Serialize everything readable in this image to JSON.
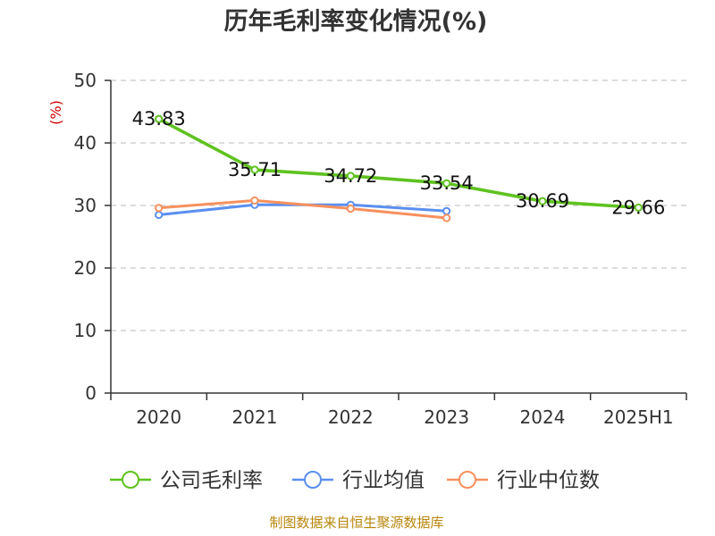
{
  "chart_data": {
    "type": "line",
    "title": "历年毛利率变化情况(%)",
    "ylabel": "(%)",
    "xlabel": "",
    "categories": [
      "2020",
      "2021",
      "2022",
      "2023",
      "2024",
      "2025H1"
    ],
    "ylim": [
      0,
      50
    ],
    "yticks": [
      0,
      10,
      20,
      30,
      40,
      50
    ],
    "grid": true,
    "legend_position": "bottom",
    "series": [
      {
        "name": "公司毛利率",
        "color": "#5fc220",
        "values": [
          43.83,
          35.71,
          34.72,
          33.54,
          30.69,
          29.66
        ],
        "labels": [
          "43.83",
          "35.71",
          "34.72",
          "33.54",
          "30.69",
          "29.66"
        ]
      },
      {
        "name": "行业均值",
        "color": "#5b8ff0",
        "values": [
          28.5,
          30.1,
          30.1,
          29.1,
          null,
          null
        ]
      },
      {
        "name": "行业中位数",
        "color": "#f7905e",
        "values": [
          29.6,
          30.8,
          29.5,
          28.0,
          null,
          null
        ]
      }
    ]
  },
  "source": "制图数据来自恒生聚源数据库"
}
